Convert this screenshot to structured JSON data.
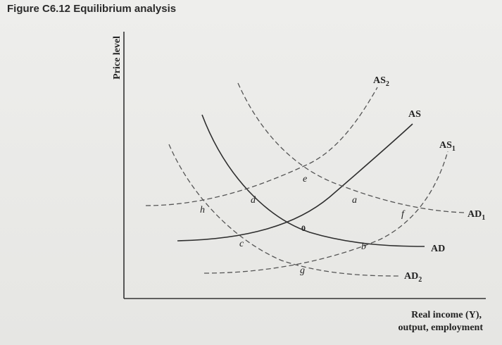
{
  "figure": {
    "title": "Figure C6.12 Equilibrium analysis"
  },
  "axes": {
    "y_label": "Price level",
    "x_label_line1": "Real income (Y),",
    "x_label_line2": "output, employment"
  },
  "curves": {
    "as": "AS",
    "as1": "AS1",
    "as2": "AS2",
    "ad": "AD",
    "ad1": "AD1",
    "ad2": "AD2"
  },
  "points": {
    "zero": "0",
    "a": "a",
    "b": "b",
    "c": "c",
    "d": "d",
    "e": "e",
    "f": "f",
    "g": "g",
    "h": "h"
  }
}
